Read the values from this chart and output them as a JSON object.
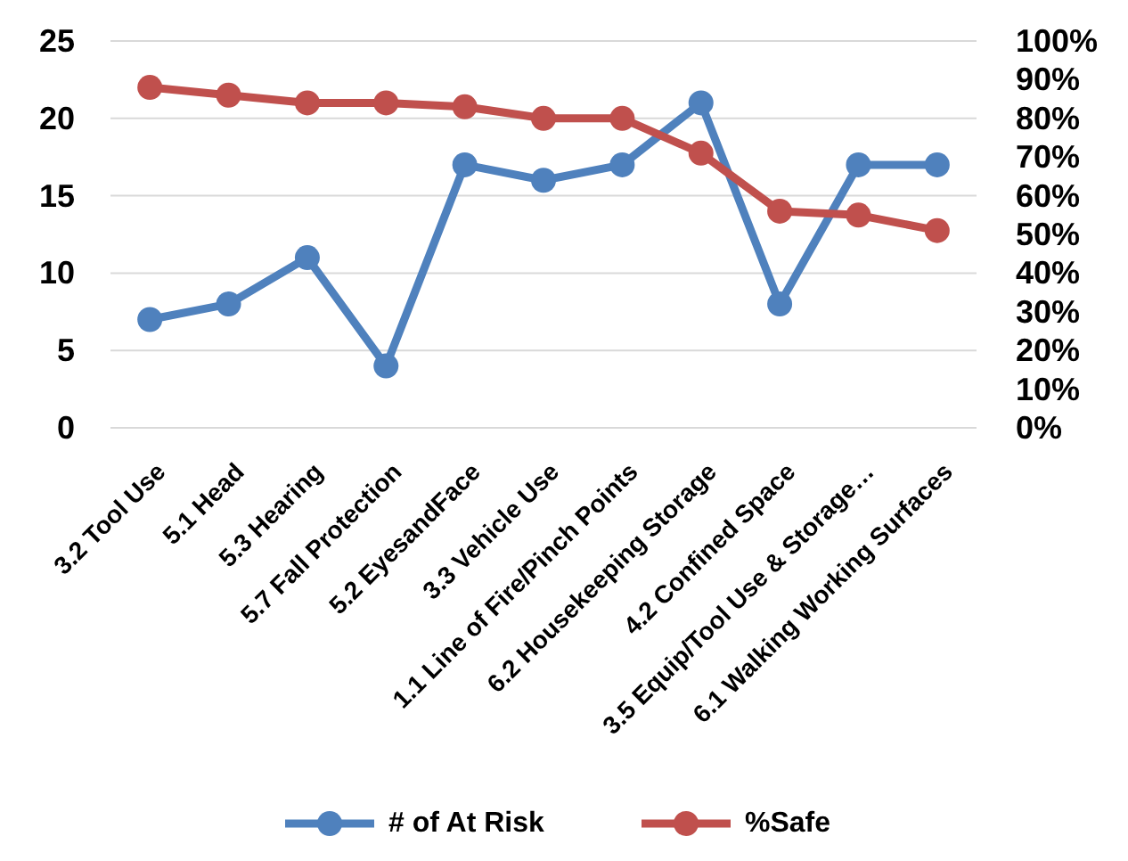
{
  "chart_data": {
    "type": "line",
    "categories": [
      "3.2 Tool Use",
      "5.1 Head",
      "5.3 Hearing",
      "5.7 Fall Protection",
      "5.2 EyesandFace",
      "3.3 Vehicle Use",
      "1.1 Line of Fire/Pinch Points",
      "6.2 Housekeeping Storage",
      "4.2 Confined Space",
      "3.5 Equip/Tool Use & Storage…",
      "6.1 Walking Working Surfaces"
    ],
    "series": [
      {
        "name": "# of At Risk",
        "color": "#4f81bd",
        "values": [
          7,
          8,
          11,
          4,
          17,
          16,
          17,
          21,
          8,
          17,
          17
        ]
      },
      {
        "name": "%Safe",
        "color": "#c0504d",
        "axis": "y2",
        "values": [
          88,
          86,
          84,
          84,
          83,
          80,
          80,
          71,
          56,
          55,
          51
        ]
      }
    ],
    "ylim": [
      0,
      25
    ],
    "yticks": [
      0,
      5,
      10,
      15,
      20,
      25
    ],
    "y2lim": [
      0,
      100
    ],
    "y2ticks": [
      {
        "value": 0,
        "label": "0%"
      },
      {
        "value": 10,
        "label": "10%"
      },
      {
        "value": 20,
        "label": "20%"
      },
      {
        "value": 30,
        "label": "30%"
      },
      {
        "value": 40,
        "label": "40%"
      },
      {
        "value": 50,
        "label": "50%"
      },
      {
        "value": 60,
        "label": "60%"
      },
      {
        "value": 70,
        "label": "70%"
      },
      {
        "value": 80,
        "label": "80%"
      },
      {
        "value": 90,
        "label": "90%"
      },
      {
        "value": 100,
        "label": "100%"
      }
    ],
    "grid": "y",
    "legend": "bottom",
    "marker": "circle",
    "line_style": "solid"
  }
}
